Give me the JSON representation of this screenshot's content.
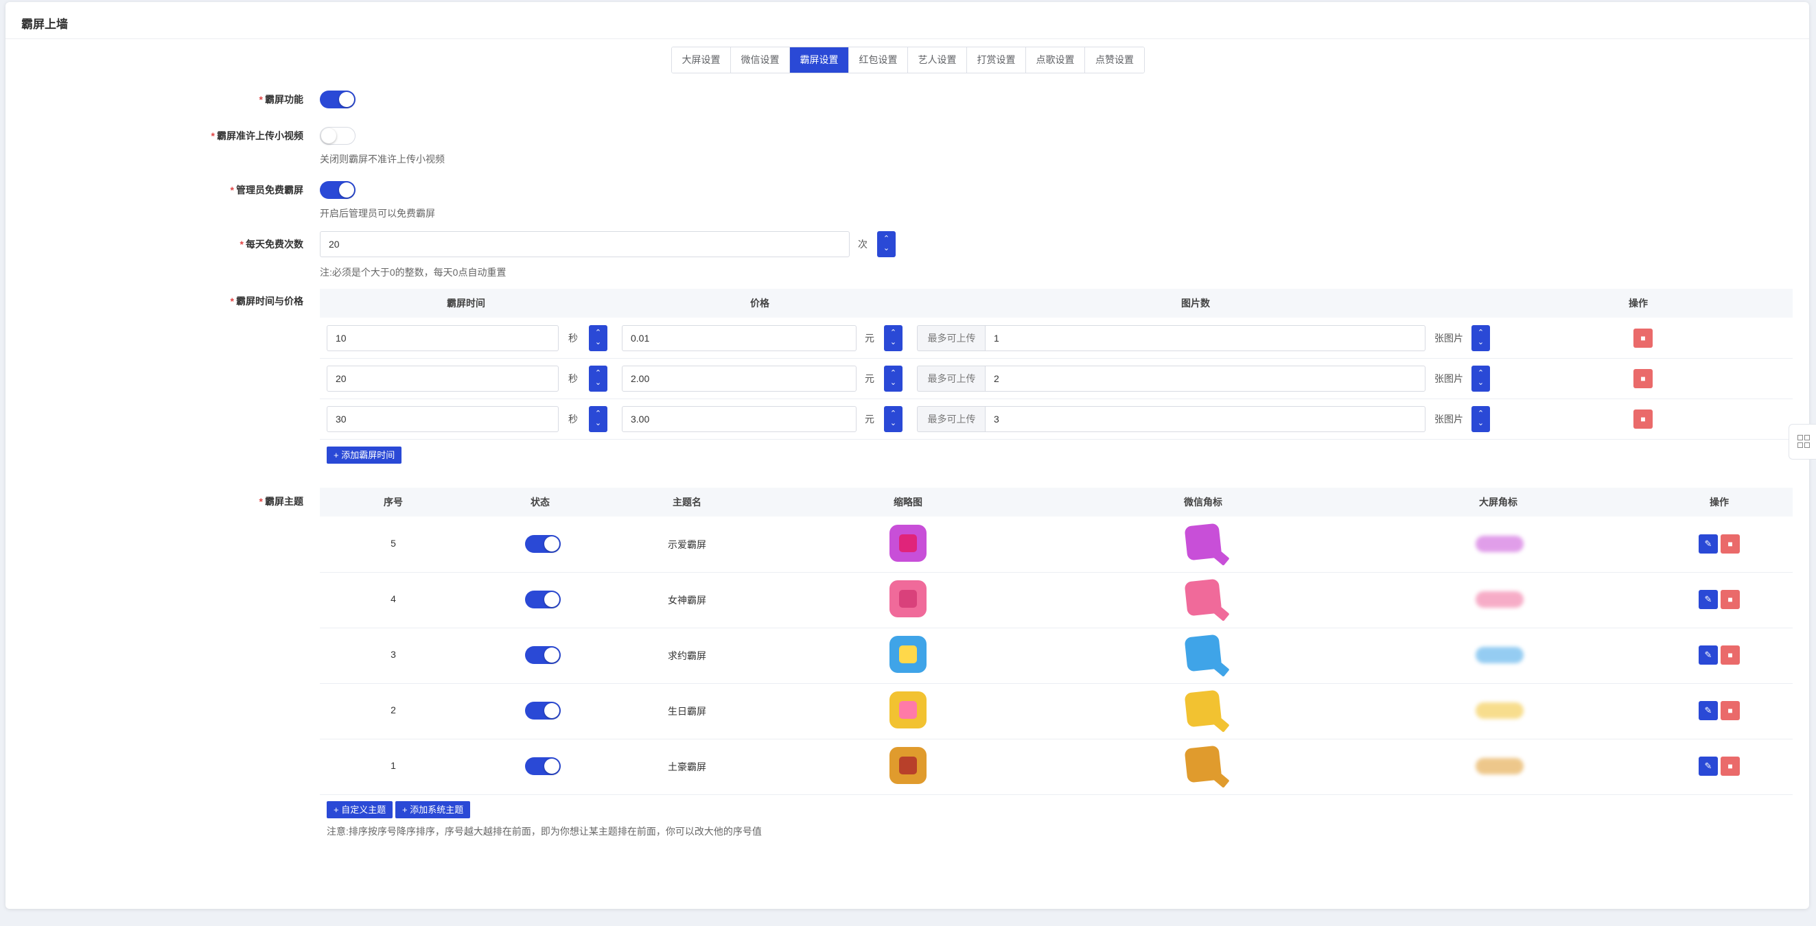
{
  "page_title": "霸屏上墙",
  "tabs": [
    "大屏设置",
    "微信设置",
    "霸屏设置",
    "红包设置",
    "艺人设置",
    "打赏设置",
    "点歌设置",
    "点赞设置"
  ],
  "form": {
    "feature_label": "霸屏功能",
    "video_label": "霸屏准许上传小视频",
    "video_hint": "关闭则霸屏不准许上传小视频",
    "admin_label": "管理员免费霸屏",
    "admin_hint": "开启后管理员可以免费霸屏",
    "daily_label": "每天免费次数",
    "daily_value": "20",
    "daily_unit": "次",
    "daily_hint": "注:必须是个大于0的整数，每天0点自动重置",
    "time_price_label": "霸屏时间与价格",
    "theme_label": "霸屏主题"
  },
  "price_table": {
    "headers": [
      "霸屏时间",
      "价格",
      "图片数",
      "操作"
    ],
    "rows": [
      {
        "time": "10",
        "time_unit": "秒",
        "price": "0.01",
        "price_unit": "元",
        "prefix": "最多可上传",
        "pics": "1",
        "pics_unit": "张图片"
      },
      {
        "time": "20",
        "time_unit": "秒",
        "price": "2.00",
        "price_unit": "元",
        "prefix": "最多可上传",
        "pics": "2",
        "pics_unit": "张图片"
      },
      {
        "time": "30",
        "time_unit": "秒",
        "price": "3.00",
        "price_unit": "元",
        "prefix": "最多可上传",
        "pics": "3",
        "pics_unit": "张图片"
      }
    ],
    "add_button": "+ 添加霸屏时间"
  },
  "theme_table": {
    "headers": [
      "序号",
      "状态",
      "主题名",
      "缩略图",
      "微信角标",
      "大屏角标",
      "操作"
    ],
    "rows": [
      {
        "order": "5",
        "name": "示爱霸屏",
        "color": "#c84fd8",
        "inner": "#e0247a"
      },
      {
        "order": "4",
        "name": "女神霸屏",
        "color": "#f06a9a",
        "inner": "#d9417b"
      },
      {
        "order": "3",
        "name": "求约霸屏",
        "color": "#3fa4e8",
        "inner": "#ffd84a"
      },
      {
        "order": "2",
        "name": "生日霸屏",
        "color": "#f2c231",
        "inner": "#ff7aa8"
      },
      {
        "order": "1",
        "name": "土豪霸屏",
        "color": "#e09b2d",
        "inner": "#b8402a"
      }
    ],
    "custom_button": "+ 自定义主题",
    "system_button": "+ 添加系统主题",
    "note": "注意:排序按序号降序排序，序号越大越排在前面，即为你想让某主题排在前面，你可以改大他的序号值"
  },
  "colors": {
    "primary": "#2a49d6",
    "danger": "#ea6a6a"
  },
  "icons": [
    "chevron-up-icon",
    "chevron-down-icon",
    "trash-icon",
    "edit-icon",
    "grid-icon"
  ]
}
